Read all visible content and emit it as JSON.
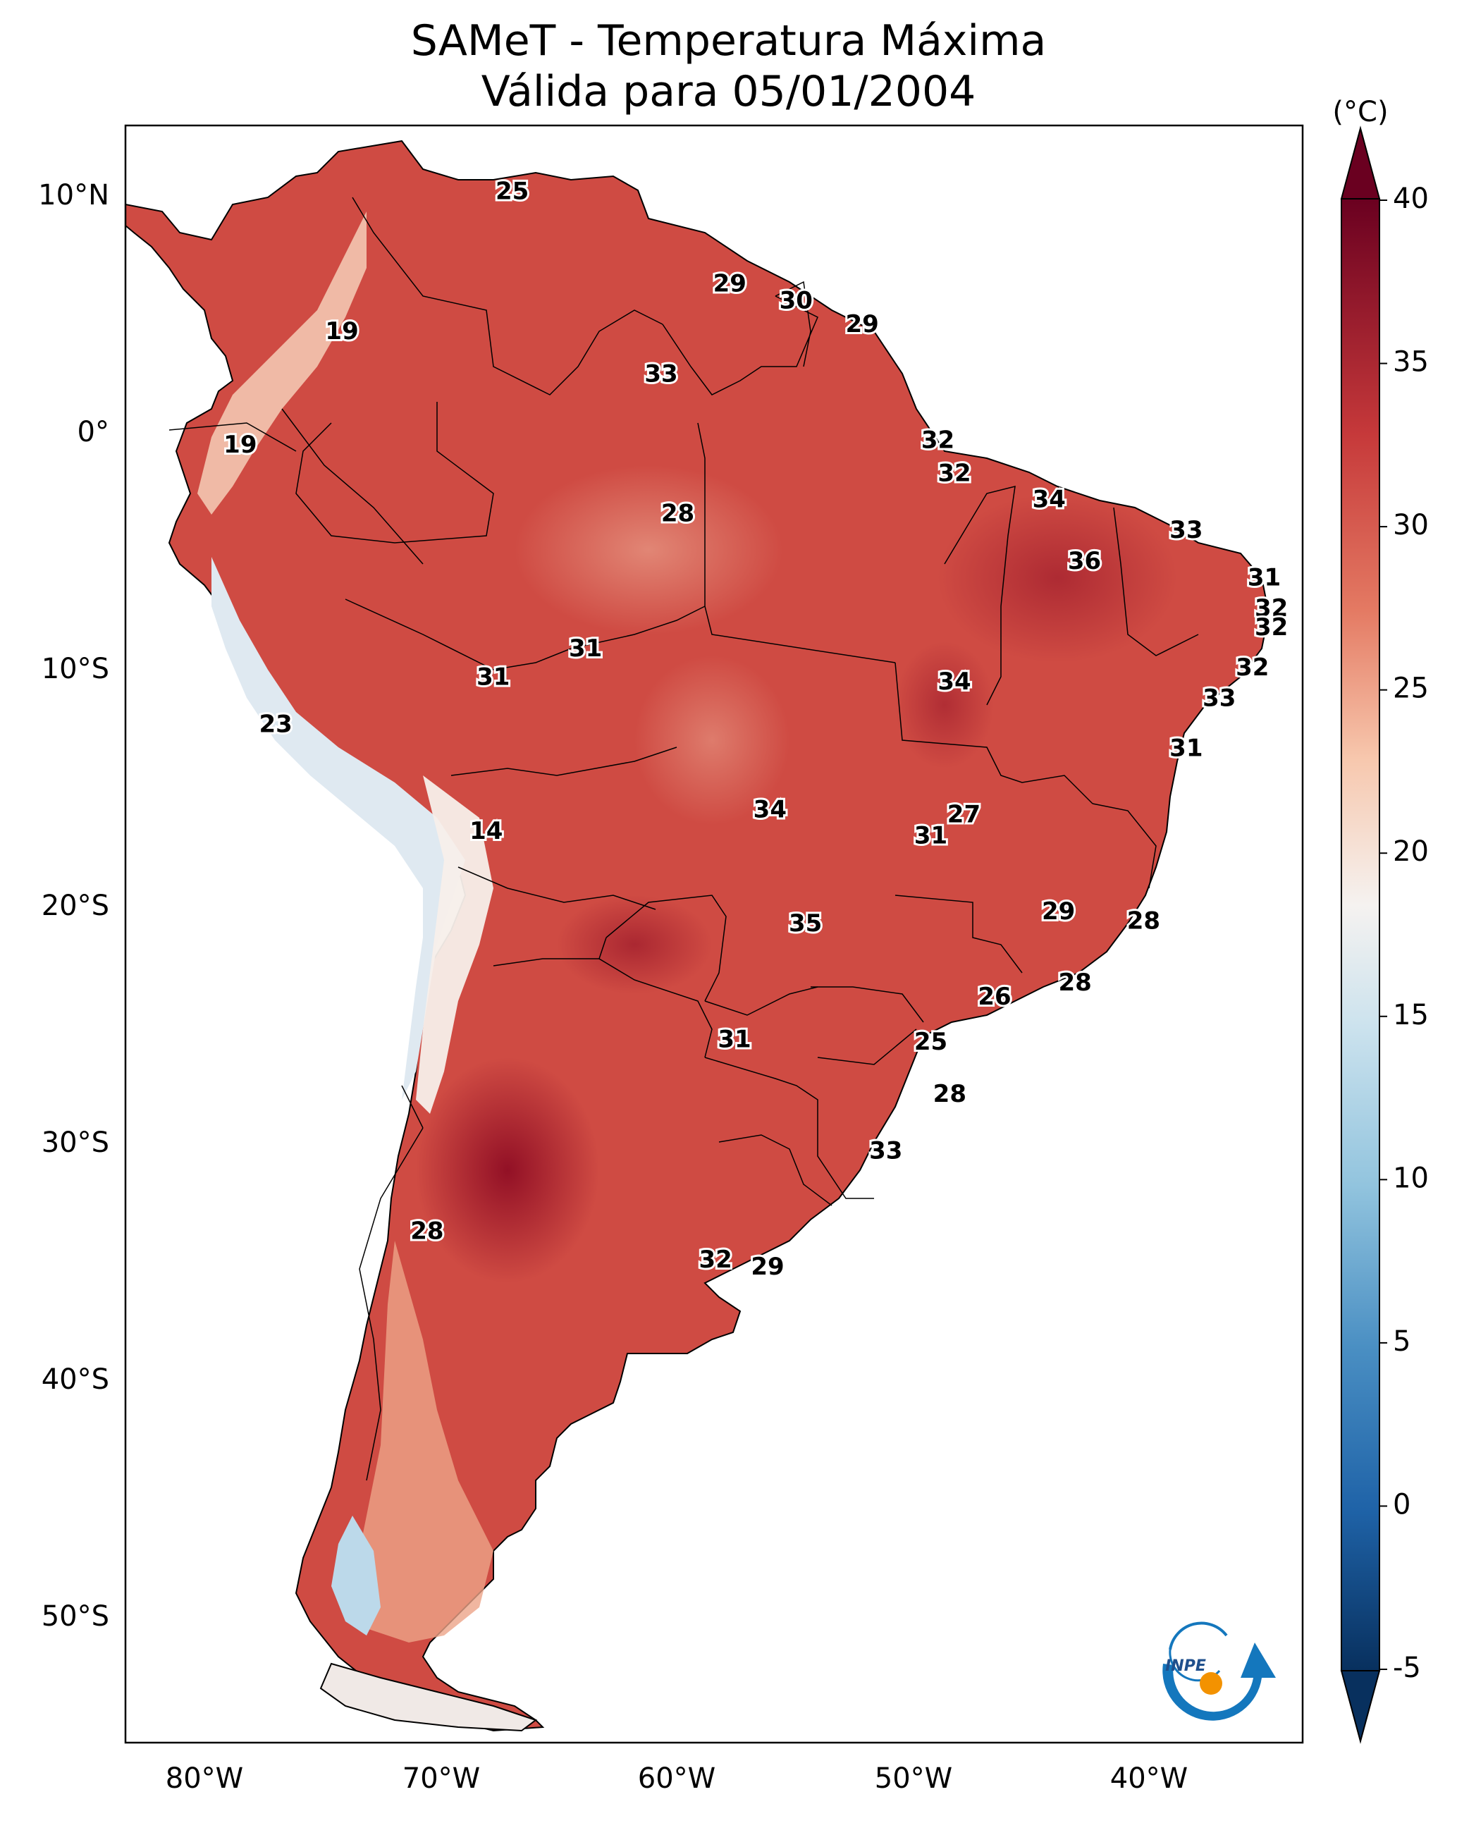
{
  "title": {
    "line1": "SAMeT - Temperatura Máxima",
    "line2": "Válida para 05/01/2004"
  },
  "colorbar": {
    "unit": "(°C)",
    "min": -5,
    "max": 40,
    "ticks": [
      "-5",
      "0",
      "5",
      "10",
      "15",
      "20",
      "25",
      "30",
      "35",
      "40"
    ],
    "colormap": "RdBu_r",
    "extend": "both"
  },
  "axes": {
    "longitude_ticks": [
      "80°W",
      "70°W",
      "60°W",
      "50°W",
      "40°W"
    ],
    "latitude_ticks": [
      "10°N",
      "0°",
      "10°S",
      "20°S",
      "30°S",
      "40°S",
      "50°S"
    ]
  },
  "logo": {
    "text": "INPE"
  },
  "colors": {
    "deep_red": "#8f0d24",
    "red": "#c6393a",
    "light_red": "#e47a63",
    "salmon": "#f4b69a",
    "white": "#f5f2f0",
    "light_blue": "#cde3ee",
    "blue": "#4a8fc3",
    "navy": "#08305e",
    "logo_blue": "#1477bd",
    "logo_orange": "#f39200"
  },
  "station_values": [
    {
      "value": "25",
      "lon": -67,
      "lat": 10.5
    },
    {
      "value": "29",
      "lon": -57.8,
      "lat": 6.6
    },
    {
      "value": "30",
      "lon": -55,
      "lat": 5.9
    },
    {
      "value": "29",
      "lon": -52.2,
      "lat": 4.9
    },
    {
      "value": "19",
      "lon": -74.2,
      "lat": 4.6
    },
    {
      "value": "33",
      "lon": -60.7,
      "lat": 2.8
    },
    {
      "value": "32",
      "lon": -49,
      "lat": 0
    },
    {
      "value": "19",
      "lon": -78.5,
      "lat": -0.2
    },
    {
      "value": "32",
      "lon": -48.3,
      "lat": -1.4
    },
    {
      "value": "34",
      "lon": -44.3,
      "lat": -2.5
    },
    {
      "value": "28",
      "lon": -60,
      "lat": -3.1
    },
    {
      "value": "33",
      "lon": -38.5,
      "lat": -3.8
    },
    {
      "value": "36",
      "lon": -42.8,
      "lat": -5.1
    },
    {
      "value": "31",
      "lon": -35.2,
      "lat": -5.8
    },
    {
      "value": "32",
      "lon": -34.9,
      "lat": -7.1
    },
    {
      "value": "32",
      "lon": -34.9,
      "lat": -7.9
    },
    {
      "value": "31",
      "lon": -63.9,
      "lat": -8.8
    },
    {
      "value": "31",
      "lon": -67.8,
      "lat": -10
    },
    {
      "value": "32",
      "lon": -35.7,
      "lat": -9.6
    },
    {
      "value": "34",
      "lon": -48.3,
      "lat": -10.2
    },
    {
      "value": "33",
      "lon": -37.1,
      "lat": -10.9
    },
    {
      "value": "23",
      "lon": -77,
      "lat": -12
    },
    {
      "value": "31",
      "lon": -38.5,
      "lat": -13
    },
    {
      "value": "14",
      "lon": -68.1,
      "lat": -16.5
    },
    {
      "value": "34",
      "lon": -56.1,
      "lat": -15.6
    },
    {
      "value": "27",
      "lon": -47.9,
      "lat": -15.8
    },
    {
      "value": "31",
      "lon": -49.3,
      "lat": -16.7
    },
    {
      "value": "29",
      "lon": -43.9,
      "lat": -19.9
    },
    {
      "value": "28",
      "lon": -40.3,
      "lat": -20.3
    },
    {
      "value": "35",
      "lon": -54.6,
      "lat": -20.4
    },
    {
      "value": "28",
      "lon": -43.2,
      "lat": -22.9
    },
    {
      "value": "26",
      "lon": -46.6,
      "lat": -23.5
    },
    {
      "value": "31",
      "lon": -57.6,
      "lat": -25.3
    },
    {
      "value": "25",
      "lon": -49.3,
      "lat": -25.4
    },
    {
      "value": "28",
      "lon": -48.5,
      "lat": -27.6
    },
    {
      "value": "33",
      "lon": -51.2,
      "lat": -30
    },
    {
      "value": "28",
      "lon": -70.6,
      "lat": -33.4
    },
    {
      "value": "32",
      "lon": -58.4,
      "lat": -34.6
    },
    {
      "value": "29",
      "lon": -56.2,
      "lat": -34.9
    }
  ]
}
